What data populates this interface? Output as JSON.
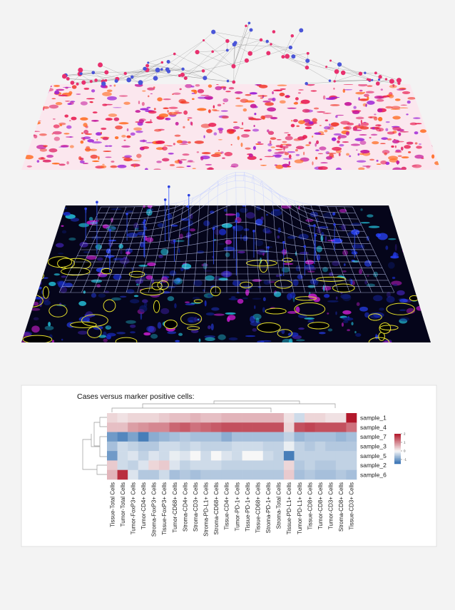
{
  "chart_data": {
    "type": "heatmap",
    "title": "Cases versus marker positive cells:",
    "rows": [
      "sample_1",
      "sample_4",
      "sample_7",
      "sample_3",
      "sample_5",
      "sample_2",
      "sample_6"
    ],
    "columns": [
      "Tissue-Total Cells",
      "Tumor-Total Cells",
      "Tumor-FoxP3+ Cells",
      "Tumor-CD4+ Cells",
      "Stroma-FoxP3+ Cells",
      "Tissue-FoxP3+ Cells",
      "Tumor-CD68+ Cells",
      "Stroma-CD4+ Cells",
      "Stroma-CD3+ Cells",
      "Stroma-PD-L1+ Cells",
      "Stroma-CD68+ Cells",
      "Tissue-CD4+ Cells",
      "Tumor-PD-1+ Cells",
      "Tissue-PD-1+ Cells",
      "Tissue-CD68+ Cells",
      "Stroma-PD-1+ Cells",
      "Stroma-Total Cells",
      "Tissue-PD-L1+ Cells",
      "Tumor-PD-L1+ Cells",
      "Tissue-CD8+ Cells",
      "Tumor-CD8+ Cells",
      "Tumor-CD3+ Cells",
      "Stroma-CD8+ Cells",
      "Tissue-CD3+ Cells"
    ],
    "values": [
      [
        0.3,
        0.2,
        0.3,
        0.3,
        0.3,
        0.4,
        0.5,
        0.5,
        0.6,
        0.5,
        0.5,
        0.6,
        0.6,
        0.6,
        0.6,
        0.6,
        0.6,
        0.2,
        -0.3,
        0.3,
        0.3,
        0.2,
        0.2,
        2
      ],
      [
        0.5,
        0.5,
        0.8,
        0.9,
        1,
        1,
        1.3,
        1.4,
        1.2,
        1.3,
        1.4,
        1.5,
        1.5,
        1.5,
        1.5,
        1.5,
        1.5,
        0.3,
        1.5,
        1.6,
        1.5,
        1.5,
        1.5,
        1.2
      ],
      [
        -1,
        -1.2,
        -0.9,
        -1.3,
        -0.8,
        -0.7,
        -0.6,
        -0.5,
        -0.6,
        -0.6,
        -0.6,
        -0.8,
        -0.6,
        -0.6,
        -0.6,
        -0.6,
        -0.6,
        -0.4,
        -0.7,
        -0.6,
        -0.6,
        -0.6,
        -0.7,
        -0.6
      ],
      [
        -0.6,
        -0.3,
        -0.4,
        -0.5,
        -0.5,
        -0.3,
        -0.3,
        -0.4,
        -0.3,
        -0.4,
        -0.4,
        -0.4,
        -0.3,
        -0.3,
        -0.3,
        -0.4,
        -0.4,
        -0.1,
        -0.4,
        -0.5,
        -0.4,
        -0.5,
        -0.5,
        -0.5
      ],
      [
        -1,
        -0.3,
        -0.2,
        -0.4,
        -0.2,
        -0.3,
        -0.1,
        -0.2,
        0,
        -0.3,
        0,
        -0.2,
        -0.3,
        0,
        0,
        -0.3,
        -0.4,
        -1.3,
        -0.4,
        -0.4,
        -0.4,
        -0.4,
        -0.4,
        -0.4
      ],
      [
        0.4,
        -0.3,
        -0.4,
        -0.2,
        0.3,
        0.4,
        -0.2,
        -0.4,
        -0.3,
        -0.3,
        -0.3,
        -0.4,
        -0.4,
        -0.4,
        -0.4,
        -0.4,
        -0.4,
        0.3,
        -0.5,
        -0.4,
        -0.5,
        -0.5,
        -0.4,
        -0.4
      ],
      [
        0.6,
        1.8,
        -0.2,
        -0.5,
        -0.5,
        -0.3,
        -0.6,
        -0.5,
        -0.6,
        -0.5,
        -0.5,
        -0.5,
        -0.5,
        -0.5,
        -0.5,
        -0.5,
        -0.5,
        0.4,
        -0.6,
        -0.5,
        -0.6,
        -0.6,
        -0.5,
        -0.6
      ]
    ],
    "clim": [
      -1.5,
      2
    ],
    "colorbar_ticks": [
      2,
      1,
      0,
      -1
    ],
    "colors": [
      "#2c6bb0",
      "#f7f7f7",
      "#b2182b"
    ]
  }
}
